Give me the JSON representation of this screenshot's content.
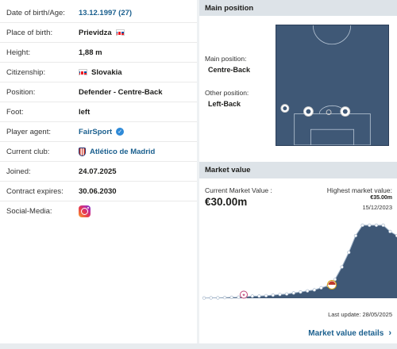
{
  "profile": {
    "rows": [
      {
        "label": "Date of birth/Age:",
        "value": "13.12.1997 (27)"
      },
      {
        "label": "Place of birth:",
        "value": "Prievidza"
      },
      {
        "label": "Height:",
        "value": "1,88 m"
      },
      {
        "label": "Citizenship:",
        "value": "Slovakia"
      },
      {
        "label": "Position:",
        "value": "Defender - Centre-Back"
      },
      {
        "label": "Foot:",
        "value": "left"
      },
      {
        "label": "Player agent:",
        "value": "FairSport"
      },
      {
        "label": "Current club:",
        "value": "Atlético de Madrid"
      },
      {
        "label": "Joined:",
        "value": "24.07.2025"
      },
      {
        "label": "Contract expires:",
        "value": "30.06.2030"
      },
      {
        "label": "Social-Media:",
        "value": ""
      }
    ]
  },
  "position": {
    "header": "Main position",
    "main_label": "Main position:",
    "main_value": "Centre-Back",
    "other_label": "Other position:",
    "other_value": "Left-Back"
  },
  "market_value": {
    "header": "Market value",
    "current_label": "Current Market Value :",
    "current_value": "€30.00m",
    "highest_label": "Highest market value:",
    "highest_value": "€35.00m",
    "highest_date": "15/12/2023",
    "last_update": "Last update: 28/05/2025",
    "details_link": "Market value details"
  },
  "colors": {
    "pitch": "#3f5876",
    "link": "#1a5f8e",
    "header_bg": "#dde3e8",
    "chart_fill": "#3f5876"
  },
  "chart_data": {
    "type": "area",
    "title": "",
    "xlabel": "",
    "ylabel": "",
    "series": [
      {
        "values": [
          0.1,
          0.2,
          0.2,
          0.3,
          0.4,
          0.5,
          0.7,
          1.0,
          1.0,
          1.2,
          1.5,
          1.8,
          2.0,
          2.5,
          3.0,
          3.5,
          4.0,
          5.0,
          6.0,
          9.0,
          15.0,
          22.0,
          30.0,
          35.0,
          35.0,
          35.0,
          35.0,
          32.0,
          30.0
        ]
      }
    ]
  }
}
